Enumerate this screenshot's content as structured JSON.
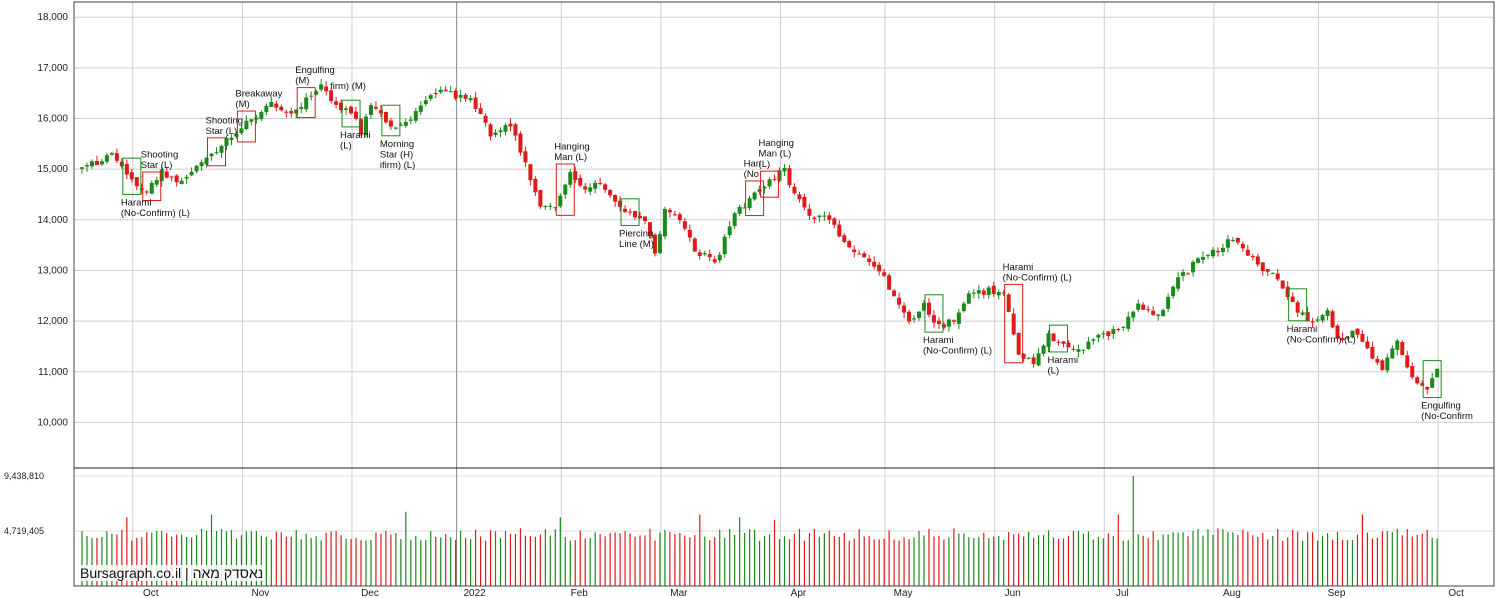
{
  "watermark": "Bursagraph.co.il | נאסדק מאה",
  "chart_data": {
    "type": "candlestick",
    "ylim": [
      9100,
      18300
    ],
    "y_ticks": [
      "18,000",
      "17,000",
      "16,000",
      "15,000",
      "14,000",
      "13,000",
      "12,000",
      "11,000",
      "10,000"
    ],
    "y_tick_values": [
      18000,
      17000,
      16000,
      15000,
      14000,
      13000,
      12000,
      11000,
      10000
    ],
    "volume_ticks": [
      "9,438,810",
      "4,719,405"
    ],
    "volume_tick_values": [
      9438810,
      4719405
    ],
    "x_ticks": [
      "Oct",
      "Nov",
      "Dec",
      "2022",
      "Feb",
      "Mar",
      "Apr",
      "May",
      "Jun",
      "Jul",
      "Aug",
      "Sep",
      "Oct"
    ],
    "x_tick_index": [
      13,
      35,
      57,
      78,
      99,
      119,
      143,
      164,
      186,
      208,
      230,
      251,
      275
    ],
    "up_color": "#1a8a1a",
    "down_color": "#e01a1a",
    "anchors": [
      [
        0,
        15000
      ],
      [
        6,
        15300
      ],
      [
        9,
        14850
      ],
      [
        13,
        14550
      ],
      [
        16,
        14950
      ],
      [
        20,
        14700
      ],
      [
        24,
        15100
      ],
      [
        28,
        15500
      ],
      [
        31,
        15750
      ],
      [
        35,
        16050
      ],
      [
        38,
        16350
      ],
      [
        41,
        16100
      ],
      [
        45,
        16350
      ],
      [
        48,
        16700
      ],
      [
        51,
        16250
      ],
      [
        54,
        16100
      ],
      [
        56,
        15750
      ],
      [
        58,
        16300
      ],
      [
        62,
        15850
      ],
      [
        66,
        15950
      ],
      [
        70,
        16500
      ],
      [
        74,
        16500
      ],
      [
        78,
        16350
      ],
      [
        82,
        15700
      ],
      [
        86,
        15850
      ],
      [
        89,
        15100
      ],
      [
        92,
        14300
      ],
      [
        95,
        14200
      ],
      [
        98,
        14900
      ],
      [
        101,
        14600
      ],
      [
        104,
        14700
      ],
      [
        107,
        14400
      ],
      [
        110,
        14100
      ],
      [
        113,
        14000
      ],
      [
        115,
        13300
      ],
      [
        117,
        14200
      ],
      [
        120,
        14000
      ],
      [
        123,
        13400
      ],
      [
        125,
        13300
      ],
      [
        127,
        13100
      ],
      [
        131,
        14100
      ],
      [
        134,
        14400
      ],
      [
        138,
        14750
      ],
      [
        141,
        15000
      ],
      [
        143,
        14500
      ],
      [
        146,
        14100
      ],
      [
        150,
        14000
      ],
      [
        153,
        13500
      ],
      [
        156,
        13300
      ],
      [
        160,
        13000
      ],
      [
        163,
        12500
      ],
      [
        166,
        12000
      ],
      [
        169,
        12300
      ],
      [
        172,
        11900
      ],
      [
        175,
        12000
      ],
      [
        178,
        12500
      ],
      [
        182,
        12600
      ],
      [
        185,
        12550
      ],
      [
        188,
        11300
      ],
      [
        191,
        11200
      ],
      [
        194,
        11700
      ],
      [
        197,
        11600
      ],
      [
        200,
        11400
      ],
      [
        204,
        11700
      ],
      [
        208,
        11800
      ],
      [
        212,
        12300
      ],
      [
        216,
        12100
      ],
      [
        220,
        12800
      ],
      [
        224,
        13200
      ],
      [
        228,
        13400
      ],
      [
        231,
        13650
      ],
      [
        234,
        13350
      ],
      [
        237,
        13000
      ],
      [
        240,
        12850
      ],
      [
        244,
        12200
      ],
      [
        247,
        12000
      ],
      [
        250,
        12250
      ],
      [
        252,
        11600
      ],
      [
        255,
        11800
      ],
      [
        258,
        11400
      ],
      [
        261,
        11100
      ],
      [
        264,
        11550
      ],
      [
        267,
        10900
      ],
      [
        270,
        10700
      ],
      [
        272,
        11000
      ]
    ],
    "volume_base": 4719405,
    "volume_max": 9438810,
    "volume_spikes": [
      [
        9,
        1.25
      ],
      [
        26,
        1.3
      ],
      [
        65,
        1.35
      ],
      [
        88,
        1.05
      ],
      [
        96,
        1.25
      ],
      [
        124,
        1.3
      ],
      [
        132,
        1.25
      ],
      [
        139,
        1.2
      ],
      [
        175,
        1.05
      ],
      [
        208,
        1.3
      ],
      [
        211,
        2.0
      ],
      [
        228,
        1.05
      ],
      [
        257,
        1.3
      ]
    ],
    "patterns": [
      {
        "label": [
          "Shooting",
          "Star (L)"
        ],
        "type": "bearish",
        "idx": 14
      },
      {
        "label": [
          "Harami",
          "(No-Confirm) (L)"
        ],
        "type": "bullish",
        "idx": 10,
        "below": true
      },
      {
        "label": [
          "Shooting",
          "Star (L)"
        ],
        "type": "bearish",
        "idx": 27
      },
      {
        "label": [
          "Breakaway",
          "(M)"
        ],
        "type": "bearish",
        "idx": 33
      },
      {
        "label": [
          "Engulfing",
          "(M)"
        ],
        "type": "bearish",
        "idx": 45
      },
      {
        "label": [
          "firm) (M)"
        ],
        "type": "none",
        "idx": 52
      },
      {
        "label": [
          "Harami",
          "(L)"
        ],
        "type": "bullish",
        "idx": 54,
        "below": true
      },
      {
        "label": [
          "Morning",
          "Star (H)",
          "ifirm) (L)"
        ],
        "type": "bullish",
        "idx": 62,
        "below": true
      },
      {
        "label": [
          "Hanging",
          "Man (L)"
        ],
        "type": "bearish",
        "idx": 97
      },
      {
        "label": [
          "Piercing",
          "Line (M)"
        ],
        "type": "bullish",
        "idx": 110,
        "below": true
      },
      {
        "label": [
          "Han",
          "(No"
        ],
        "type": "bearish",
        "idx": 135
      },
      {
        "label": [
          "Hanging",
          "Man (L)",
          "(L)"
        ],
        "type": "bearish",
        "idx": 138
      },
      {
        "label": [
          "Harami",
          "(No-Confirm) (L)"
        ],
        "type": "bullish",
        "idx": 171,
        "below": true
      },
      {
        "label": [
          "Harami",
          "(No-Confirm) (L)"
        ],
        "type": "bearish",
        "idx": 187
      },
      {
        "label": [
          "Harami",
          "(L)"
        ],
        "type": "bullish",
        "idx": 196,
        "below": true
      },
      {
        "label": [
          "Harami",
          "(No-Confirm) (L)"
        ],
        "type": "bullish",
        "idx": 244,
        "below": true
      },
      {
        "label": [
          "Engulfing",
          "(No-Confirm"
        ],
        "type": "bullish",
        "idx": 271,
        "below": true
      }
    ]
  }
}
